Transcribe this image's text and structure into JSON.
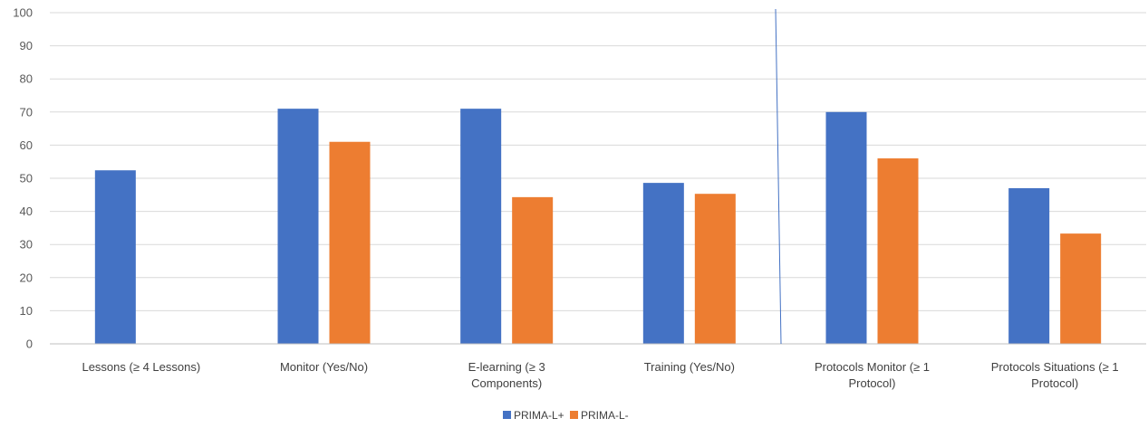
{
  "chart_data": {
    "type": "bar",
    "categories": [
      [
        "Lessons (≥  4 Lessons)"
      ],
      [
        "Monitor (Yes/No)"
      ],
      [
        "E-learning (≥ 3",
        "Components)"
      ],
      [
        "Training (Yes/No)"
      ],
      [
        "Protocols Monitor (≥ 1",
        "Protocol)"
      ],
      [
        "Protocols Situations (≥ 1",
        "Protocol)"
      ]
    ],
    "series": [
      {
        "name": "PRIMA-L+",
        "color": "#4472c4",
        "values": [
          52.4,
          71,
          71,
          48.6,
          70,
          47
        ]
      },
      {
        "name": "PRIMA-L-",
        "color": "#ed7d31",
        "values": [
          null,
          61,
          44.3,
          45.3,
          56,
          33.3
        ]
      }
    ],
    "ylim": [
      0,
      100
    ],
    "yticks": [
      0,
      10,
      20,
      30,
      40,
      50,
      60,
      70,
      80,
      90,
      100
    ],
    "grid": true,
    "legend": "bottom-center",
    "separator_color": "#4472c4",
    "xlabel": "",
    "ylabel": "",
    "title": ""
  }
}
